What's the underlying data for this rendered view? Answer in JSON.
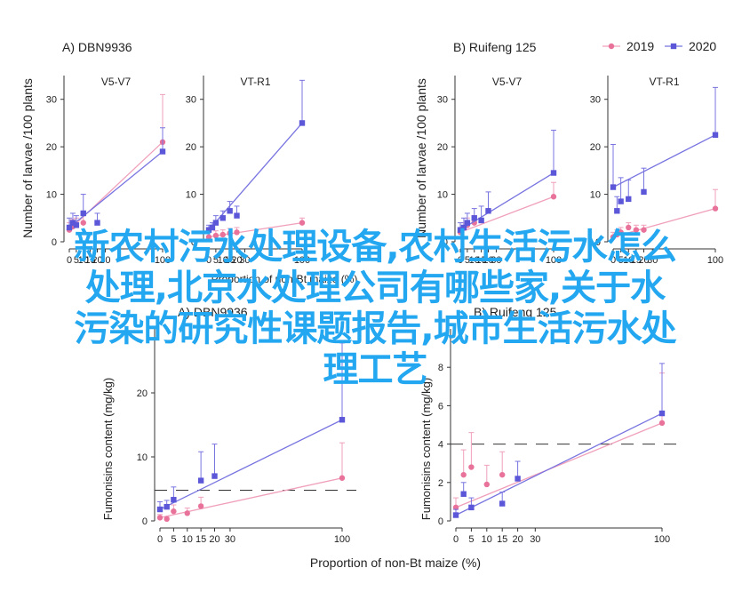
{
  "overlay_lines": [
    "新农村污水处理设备,农村生活污水怎么",
    "处理,北京水处理公司有哪些家,关于水",
    "污染的研究性课题报告,城市生活污水处",
    "理工艺"
  ],
  "colors": {
    "y2019": "#e8729a",
    "y2020": "#5b57d8",
    "line2019": "#f0a0bb",
    "line2020": "#7874e0"
  },
  "legend": {
    "y2019": "2019",
    "y2020": "2020"
  },
  "chart_data": [
    {
      "type": "line",
      "panel_label": "A)",
      "hybrid": "DBN9936",
      "ylabel": "Number of larvae /100 plants",
      "ylim": [
        0,
        35
      ],
      "yticks": [
        0,
        10,
        20,
        30
      ],
      "xticks": [
        0,
        5,
        10,
        15,
        20,
        30,
        100
      ],
      "subplots": [
        {
          "title": "V5-V7",
          "series": [
            {
              "name": "2019",
              "points": [
                [
                  0,
                  2.5,
                  1.5
                ],
                [
                  2.5,
                  3.2,
                  1.5
                ],
                [
                  5,
                  3.5,
                  1.5
                ],
                [
                  10,
                  4,
                  1.5
                ],
                [
                  100,
                  21,
                  10
                ]
              ]
            },
            {
              "name": "2020",
              "points": [
                [
                  0,
                  3,
                  2
                ],
                [
                  2.5,
                  4,
                  2
                ],
                [
                  5,
                  3.5,
                  2
                ],
                [
                  10,
                  6,
                  4
                ],
                [
                  20,
                  4,
                  2
                ],
                [
                  100,
                  19,
                  5
                ]
              ]
            }
          ]
        },
        {
          "title": "VT-R1",
          "series": [
            {
              "name": "2019",
              "points": [
                [
                  0,
                  1,
                  1
                ],
                [
                  5,
                  1.3,
                  1
                ],
                [
                  10,
                  1.5,
                  1
                ],
                [
                  15,
                  1.8,
                  1
                ],
                [
                  20,
                  2,
                  1
                ],
                [
                  100,
                  4,
                  1
                ]
              ]
            },
            {
              "name": "2020",
              "points": [
                [
                  0,
                  2.5,
                  1
                ],
                [
                  2.5,
                  3,
                  1
                ],
                [
                  5,
                  4,
                  1.5
                ],
                [
                  10,
                  5,
                  1.5
                ],
                [
                  15,
                  6.5,
                  2
                ],
                [
                  20,
                  5.5,
                  2
                ],
                [
                  100,
                  25,
                  9
                ]
              ]
            }
          ]
        }
      ]
    },
    {
      "type": "line",
      "panel_label": "B)",
      "hybrid": "Ruifeng 125",
      "ylabel": "Number of larvae /100 plants",
      "ylim": [
        0,
        35
      ],
      "yticks": [
        0,
        10,
        20,
        30
      ],
      "xticks": [
        0,
        5,
        10,
        15,
        20,
        30,
        100
      ],
      "subplots": [
        {
          "title": "V5-V7",
          "series": [
            {
              "name": "2019",
              "points": [
                [
                  0,
                  2,
                  1
                ],
                [
                  2.5,
                  3,
                  1
                ],
                [
                  5,
                  3.5,
                  1.5
                ],
                [
                  10,
                  4,
                  1.5
                ],
                [
                  100,
                  9.5,
                  3
                ]
              ]
            },
            {
              "name": "2020",
              "points": [
                [
                  0,
                  2.5,
                  1.5
                ],
                [
                  2.5,
                  3,
                  2
                ],
                [
                  5,
                  4,
                  2
                ],
                [
                  10,
                  5,
                  2
                ],
                [
                  15,
                  4.5,
                  3
                ],
                [
                  20,
                  6.5,
                  4
                ],
                [
                  100,
                  14.5,
                  9
                ]
              ]
            }
          ]
        },
        {
          "title": "VT-R1",
          "series": [
            {
              "name": "2019",
              "points": [
                [
                  0,
                  1,
                  1
                ],
                [
                  2.5,
                  1.5,
                  1
                ],
                [
                  5,
                  2,
                  1
                ],
                [
                  10,
                  3,
                  1
                ],
                [
                  15,
                  2.5,
                  1
                ],
                [
                  20,
                  2.5,
                  1
                ],
                [
                  100,
                  7,
                  4
                ]
              ]
            },
            {
              "name": "2020",
              "points": [
                [
                  0,
                  11.5,
                  9
                ],
                [
                  2.5,
                  6.5,
                  3
                ],
                [
                  5,
                  8.5,
                  5
                ],
                [
                  10,
                  9,
                  4
                ],
                [
                  20,
                  10.5,
                  5
                ],
                [
                  100,
                  22.5,
                  10
                ]
              ]
            }
          ]
        }
      ]
    },
    {
      "type": "scatter",
      "panel_label": "A)",
      "hybrid": "DBN9936",
      "ylabel": "Fumonisins content (mg/kg)",
      "xlabel": "Proportion of non-Bt maize (%)",
      "ylim": [
        0,
        30
      ],
      "yticks": [
        0,
        10,
        20
      ],
      "xticks": [
        0,
        5,
        10,
        15,
        20,
        30,
        100
      ],
      "threshold": 4.8,
      "series": [
        {
          "name": "2019",
          "points": [
            [
              0,
              0.5,
              0.5
            ],
            [
              2.5,
              0.3,
              0.3
            ],
            [
              5,
              1.5,
              1
            ],
            [
              10,
              1.2,
              0.8
            ],
            [
              15,
              2.3,
              1.4
            ],
            [
              100,
              6.7,
              5.5
            ]
          ]
        },
        {
          "name": "2020",
          "points": [
            [
              0,
              1.8,
              1.2
            ],
            [
              2.5,
              2.2,
              1
            ],
            [
              5,
              3.3,
              2
            ],
            [
              15,
              6.3,
              4.5
            ],
            [
              20,
              7,
              5
            ],
            [
              100,
              15.8,
              12
            ]
          ]
        }
      ]
    },
    {
      "type": "scatter",
      "panel_label": "B)",
      "hybrid": "Ruifeng 125",
      "ylabel": "Fumonisins content (mg/kg)",
      "xlabel": "Proportion of non-Bt maize (%)",
      "ylim": [
        0,
        10
      ],
      "yticks": [
        0,
        2,
        4,
        6,
        8
      ],
      "xticks": [
        0,
        5,
        10,
        15,
        20,
        30,
        100
      ],
      "threshold": 4,
      "series": [
        {
          "name": "2019",
          "points": [
            [
              0,
              0.7,
              0.5
            ],
            [
              2.5,
              2.4,
              1.3
            ],
            [
              5,
              2.8,
              1.8
            ],
            [
              10,
              1.9,
              1
            ],
            [
              15,
              2.4,
              1.2
            ],
            [
              100,
              5.1,
              2.6
            ]
          ]
        },
        {
          "name": "2020",
          "points": [
            [
              0,
              0.3,
              0.3
            ],
            [
              2.5,
              1.4,
              0.6
            ],
            [
              5,
              0.7,
              0.5
            ],
            [
              15,
              0.9,
              0.6
            ],
            [
              20,
              2.2,
              0.9
            ],
            [
              100,
              5.6,
              2.6
            ]
          ]
        }
      ]
    }
  ]
}
